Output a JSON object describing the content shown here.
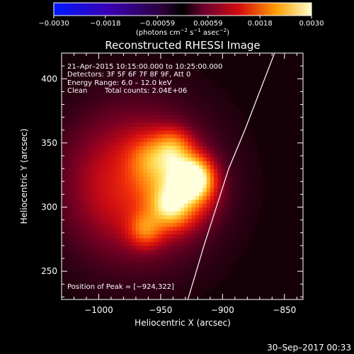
{
  "chart_data": {
    "type": "heatmap",
    "title": "Reconstructed RHESSI Image",
    "xlabel": "Heliocentric X (arcsec)",
    "ylabel": "Heliocentric Y (arcsec)",
    "xlim": [
      -1030,
      -835
    ],
    "ylim": [
      228,
      420
    ],
    "x_ticks": [
      -1000,
      -950,
      -900,
      -850
    ],
    "x_tick_labels": [
      "−1000",
      "−950",
      "−900",
      "−850"
    ],
    "y_ticks": [
      250,
      300,
      350,
      400
    ],
    "y_tick_labels": [
      "250",
      "300",
      "350",
      "400"
    ],
    "colorbar": {
      "range": [
        -0.003,
        0.003
      ],
      "ticks": [
        -0.003,
        -0.0018,
        -0.00059,
        0.00059,
        0.0018,
        0.003
      ],
      "tick_labels": [
        "−0.0030",
        "−0.0018",
        "−0.00059",
        "0.00059",
        "0.0018",
        "0.0030"
      ],
      "units_prefix": "(photons cm",
      "units_exp1": "−2",
      "units_mid1": " s",
      "units_exp2": "−1",
      "units_mid2": " asec",
      "units_exp3": "−2",
      "units_suffix": ")"
    },
    "annotations": {
      "time_range": "21–Apr–2015 10:15:00.000 to 10:25:00.000",
      "detectors": "Detectors: 3F 5F 6F 7F 8F 9F, Att 0",
      "energy_range": "Energy Range: 6.0 – 12.0 keV",
      "method": "Clean",
      "total_counts": "Total counts: 2.04E+06",
      "peak_label": "Position of Peak = [−924,322]"
    },
    "peak_position": [
      -924,
      322
    ],
    "sources": [
      {
        "x": -925,
        "y": 322,
        "intensity": 1.0,
        "sigma": 10
      },
      {
        "x": -935,
        "y": 315,
        "intensity": 0.5,
        "sigma": 18
      },
      {
        "x": -942,
        "y": 300,
        "intensity": 0.45,
        "sigma": 10
      },
      {
        "x": -940,
        "y": 345,
        "intensity": 0.42,
        "sigma": 10
      },
      {
        "x": -962,
        "y": 283,
        "intensity": 0.35,
        "sigma": 9
      },
      {
        "x": -958,
        "y": 338,
        "intensity": 0.3,
        "sigma": 12
      },
      {
        "x": -970,
        "y": 318,
        "intensity": 0.38,
        "sigma": 42
      }
    ],
    "limb_curve": [
      {
        "x": -928,
        "y": 228
      },
      {
        "x": -915,
        "y": 270
      },
      {
        "x": -905,
        "y": 300
      },
      {
        "x": -895,
        "y": 330
      },
      {
        "x": -882,
        "y": 360
      },
      {
        "x": -870,
        "y": 390
      },
      {
        "x": -858,
        "y": 420
      }
    ],
    "footer_date": "30–Sep–2017 00:33"
  }
}
